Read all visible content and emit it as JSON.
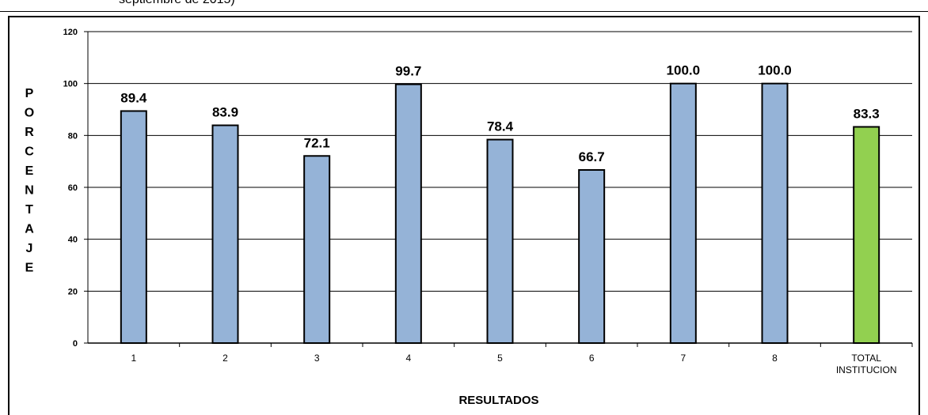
{
  "caption_fragment": "septiembre de 2015)",
  "chart_data": {
    "type": "bar",
    "categories": [
      "1",
      "2",
      "3",
      "4",
      "5",
      "6",
      "7",
      "8",
      "TOTAL INSTITUCION"
    ],
    "category_lines": [
      [
        "1"
      ],
      [
        "2"
      ],
      [
        "3"
      ],
      [
        "4"
      ],
      [
        "5"
      ],
      [
        "6"
      ],
      [
        "7"
      ],
      [
        "8"
      ],
      [
        "TOTAL",
        "INSTITUCION"
      ]
    ],
    "values": [
      89.4,
      83.9,
      72.1,
      99.7,
      78.4,
      66.7,
      100.0,
      100.0,
      83.3
    ],
    "data_labels": [
      "89.4",
      "83.9",
      "72.1",
      "99.7",
      "78.4",
      "66.7",
      "100.0",
      "100.0",
      "83.3"
    ],
    "bar_colors": [
      "#95b3d7",
      "#95b3d7",
      "#95b3d7",
      "#95b3d7",
      "#95b3d7",
      "#95b3d7",
      "#95b3d7",
      "#95b3d7",
      "#92d050"
    ],
    "ylabel_letters": [
      "P",
      "O",
      "R",
      "C",
      "E",
      "N",
      "T",
      "A",
      "J",
      "E"
    ],
    "xlabel": "RESULTADOS",
    "ylim": [
      0,
      120
    ],
    "yticks": [
      "0",
      "20",
      "40",
      "60",
      "80",
      "100",
      "120"
    ],
    "grid": true
  }
}
